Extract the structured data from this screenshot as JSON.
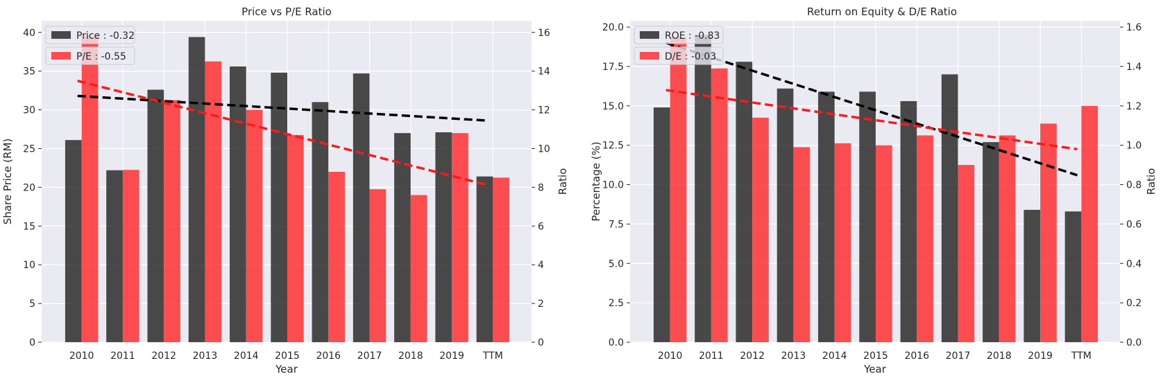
{
  "chart_data": [
    {
      "type": "bar",
      "title": "Price vs P/E Ratio",
      "xlabel": "Year",
      "ylabel": "Share Price (RM)",
      "y2label": "Ratio",
      "categories": [
        "2010",
        "2011",
        "2012",
        "2013",
        "2014",
        "2015",
        "2016",
        "2017",
        "2018",
        "2019",
        "TTM"
      ],
      "ylim": [
        0,
        41.5
      ],
      "y2lim": [
        0,
        16.6
      ],
      "yticks": [
        "0",
        "5",
        "10",
        "15",
        "20",
        "25",
        "30",
        "35",
        "40"
      ],
      "y2ticks": [
        "0",
        "2",
        "4",
        "6",
        "8",
        "10",
        "12",
        "14",
        "16"
      ],
      "grid": true,
      "legend_position": "upper-left",
      "series": [
        {
          "name": "Price",
          "legend_label": "Price : -0.32",
          "axis": "left",
          "color": "#1a1a1a",
          "values": [
            26.1,
            22.2,
            32.6,
            39.4,
            35.6,
            34.8,
            31.0,
            34.7,
            27.0,
            27.1,
            21.4
          ],
          "trend": [
            31.8,
            28.6
          ]
        },
        {
          "name": "P/E",
          "legend_label": "P/E : -0.55",
          "axis": "right",
          "color": "#ff2b2b",
          "values": [
            15.8,
            8.9,
            12.5,
            14.5,
            12.0,
            10.7,
            8.8,
            7.9,
            7.6,
            10.8,
            8.5
          ],
          "trend": [
            13.5,
            8.1
          ]
        }
      ]
    },
    {
      "type": "bar",
      "title": "Return on Equity & D/E Ratio",
      "xlabel": "Year",
      "ylabel": "Percentage (%)",
      "y2label": "Ratio",
      "categories": [
        "2010",
        "2011",
        "2012",
        "2013",
        "2014",
        "2015",
        "2016",
        "2017",
        "2018",
        "2019",
        "TTM"
      ],
      "ylim": [
        0,
        20.4
      ],
      "y2lim": [
        0,
        1.632
      ],
      "yticks": [
        "0.0",
        "2.5",
        "5.0",
        "7.5",
        "10.0",
        "12.5",
        "15.0",
        "17.5",
        "20.0"
      ],
      "y2ticks": [
        "0.0",
        "0.2",
        "0.4",
        "0.6",
        "0.8",
        "1.0",
        "1.2",
        "1.4",
        "1.6"
      ],
      "grid": true,
      "legend_position": "upper-left",
      "series": [
        {
          "name": "ROE",
          "legend_label": "ROE : -0.83",
          "axis": "left",
          "color": "#1a1a1a",
          "values": [
            14.9,
            19.5,
            17.8,
            16.1,
            15.9,
            15.9,
            15.3,
            17.0,
            12.7,
            8.4,
            8.3
          ],
          "trend": [
            19.0,
            10.6
          ]
        },
        {
          "name": "D/E",
          "legend_label": "D/E : -0.03",
          "axis": "right",
          "color": "#ff2b2b",
          "values": [
            1.55,
            1.39,
            1.14,
            0.99,
            1.01,
            1.0,
            1.05,
            0.9,
            1.05,
            1.11,
            1.2
          ],
          "trend": [
            1.28,
            0.98
          ]
        }
      ]
    }
  ]
}
